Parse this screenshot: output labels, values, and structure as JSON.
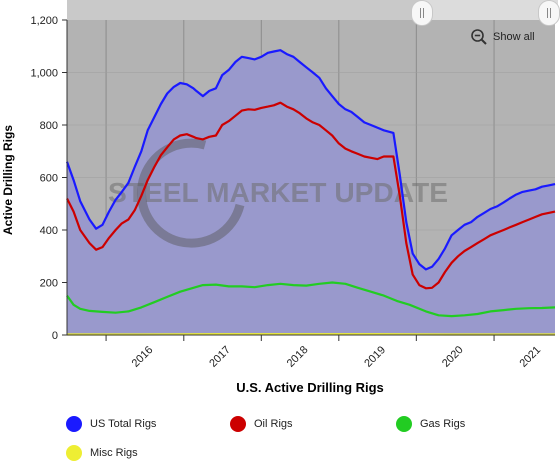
{
  "chart_data": {
    "type": "area",
    "title": "U.S. Active Drilling Rigs",
    "xlabel": "U.S. Active Drilling Rigs",
    "ylabel": "Active Drilling Rigs",
    "ylim": [
      0,
      1200
    ],
    "yticks": [
      "0",
      "200",
      "400",
      "600",
      "800",
      "1,000",
      "1,200"
    ],
    "xtick_labels": [
      "2016",
      "2017",
      "2018",
      "2019",
      "2020",
      "2021"
    ],
    "xlim": [
      "2015-07-01",
      "2021-10-15"
    ],
    "grid": true,
    "legend_position": "bottom",
    "watermark": "STEEL MARKET UPDATE",
    "colors": {
      "plot_bg": "#b3b3b3",
      "area": "#9999cc",
      "us_total": "#1a1aff",
      "oil": "#cc0000",
      "gas": "#22cc22",
      "misc": "#eeee33"
    },
    "series": [
      {
        "name": "US Total Rigs",
        "color": "#1a1aff",
        "points": [
          [
            "2015-07-01",
            660
          ],
          [
            "2015-08-01",
            590
          ],
          [
            "2015-09-01",
            510
          ],
          [
            "2015-10-15",
            440
          ],
          [
            "2015-11-15",
            405
          ],
          [
            "2015-12-15",
            420
          ],
          [
            "2016-01-15",
            470
          ],
          [
            "2016-02-15",
            515
          ],
          [
            "2016-03-15",
            545
          ],
          [
            "2016-04-15",
            580
          ],
          [
            "2016-05-15",
            640
          ],
          [
            "2016-06-15",
            700
          ],
          [
            "2016-07-15",
            780
          ],
          [
            "2016-08-15",
            830
          ],
          [
            "2016-09-15",
            880
          ],
          [
            "2016-10-15",
            920
          ],
          [
            "2016-11-15",
            945
          ],
          [
            "2016-12-15",
            960
          ],
          [
            "2017-01-15",
            955
          ],
          [
            "2017-02-15",
            940
          ],
          [
            "2017-03-01",
            930
          ],
          [
            "2017-04-01",
            910
          ],
          [
            "2017-05-01",
            930
          ],
          [
            "2017-06-01",
            940
          ],
          [
            "2017-07-01",
            990
          ],
          [
            "2017-08-01",
            1010
          ],
          [
            "2017-09-01",
            1040
          ],
          [
            "2017-10-01",
            1060
          ],
          [
            "2017-11-01",
            1055
          ],
          [
            "2017-12-01",
            1050
          ],
          [
            "2018-01-01",
            1060
          ],
          [
            "2018-02-01",
            1075
          ],
          [
            "2018-03-01",
            1080
          ],
          [
            "2018-04-01",
            1085
          ],
          [
            "2018-05-01",
            1070
          ],
          [
            "2018-06-01",
            1060
          ],
          [
            "2018-07-01",
            1040
          ],
          [
            "2018-08-01",
            1020
          ],
          [
            "2018-09-01",
            1000
          ],
          [
            "2018-10-01",
            980
          ],
          [
            "2018-11-01",
            940
          ],
          [
            "2018-12-01",
            910
          ],
          [
            "2019-01-01",
            880
          ],
          [
            "2019-02-01",
            860
          ],
          [
            "2019-03-01",
            850
          ],
          [
            "2019-04-01",
            830
          ],
          [
            "2019-05-01",
            810
          ],
          [
            "2019-06-01",
            800
          ],
          [
            "2019-07-01",
            790
          ],
          [
            "2019-08-01",
            780
          ],
          [
            "2019-09-15",
            770
          ],
          [
            "2019-10-15",
            610
          ],
          [
            "2019-11-15",
            430
          ],
          [
            "2019-12-15",
            310
          ],
          [
            "2020-01-15",
            270
          ],
          [
            "2020-02-15",
            250
          ],
          [
            "2020-03-15",
            260
          ],
          [
            "2020-04-15",
            290
          ],
          [
            "2020-05-15",
            330
          ],
          [
            "2020-06-15",
            380
          ],
          [
            "2020-07-15",
            400
          ],
          [
            "2020-08-15",
            420
          ],
          [
            "2020-09-15",
            430
          ],
          [
            "2020-10-15",
            450
          ],
          [
            "2020-11-15",
            465
          ],
          [
            "2020-12-15",
            480
          ],
          [
            "2021-01-15",
            490
          ],
          [
            "2021-02-15",
            505
          ],
          [
            "2021-03-15",
            520
          ],
          [
            "2021-04-15",
            535
          ],
          [
            "2021-05-15",
            545
          ],
          [
            "2021-06-15",
            550
          ],
          [
            "2021-07-15",
            555
          ],
          [
            "2021-08-15",
            565
          ],
          [
            "2021-09-15",
            570
          ],
          [
            "2021-10-15",
            575
          ]
        ]
      },
      {
        "name": "Oil Rigs",
        "color": "#cc0000",
        "points": [
          [
            "2015-07-01",
            520
          ],
          [
            "2015-08-01",
            470
          ],
          [
            "2015-09-01",
            400
          ],
          [
            "2015-10-15",
            350
          ],
          [
            "2015-11-15",
            325
          ],
          [
            "2015-12-15",
            335
          ],
          [
            "2016-01-15",
            370
          ],
          [
            "2016-02-15",
            400
          ],
          [
            "2016-03-15",
            425
          ],
          [
            "2016-04-15",
            440
          ],
          [
            "2016-05-15",
            475
          ],
          [
            "2016-06-15",
            530
          ],
          [
            "2016-07-15",
            590
          ],
          [
            "2016-08-15",
            640
          ],
          [
            "2016-09-15",
            685
          ],
          [
            "2016-10-15",
            715
          ],
          [
            "2016-11-15",
            745
          ],
          [
            "2016-12-15",
            760
          ],
          [
            "2017-01-15",
            765
          ],
          [
            "2017-02-15",
            755
          ],
          [
            "2017-03-01",
            750
          ],
          [
            "2017-04-01",
            745
          ],
          [
            "2017-05-01",
            755
          ],
          [
            "2017-06-01",
            760
          ],
          [
            "2017-07-01",
            800
          ],
          [
            "2017-08-01",
            815
          ],
          [
            "2017-09-01",
            835
          ],
          [
            "2017-10-01",
            855
          ],
          [
            "2017-11-01",
            860
          ],
          [
            "2017-12-01",
            858
          ],
          [
            "2018-01-01",
            865
          ],
          [
            "2018-02-01",
            870
          ],
          [
            "2018-03-01",
            875
          ],
          [
            "2018-04-01",
            885
          ],
          [
            "2018-05-01",
            870
          ],
          [
            "2018-06-01",
            860
          ],
          [
            "2018-07-01",
            845
          ],
          [
            "2018-08-01",
            825
          ],
          [
            "2018-09-01",
            810
          ],
          [
            "2018-10-01",
            800
          ],
          [
            "2018-11-01",
            780
          ],
          [
            "2018-12-01",
            760
          ],
          [
            "2019-01-01",
            730
          ],
          [
            "2019-02-01",
            710
          ],
          [
            "2019-03-01",
            700
          ],
          [
            "2019-04-01",
            690
          ],
          [
            "2019-05-01",
            680
          ],
          [
            "2019-06-01",
            675
          ],
          [
            "2019-07-01",
            670
          ],
          [
            "2019-08-01",
            680
          ],
          [
            "2019-09-15",
            680
          ],
          [
            "2019-10-15",
            530
          ],
          [
            "2019-11-15",
            350
          ],
          [
            "2019-12-15",
            230
          ],
          [
            "2020-01-15",
            190
          ],
          [
            "2020-02-15",
            178
          ],
          [
            "2020-03-15",
            180
          ],
          [
            "2020-04-15",
            200
          ],
          [
            "2020-05-15",
            240
          ],
          [
            "2020-06-15",
            275
          ],
          [
            "2020-07-15",
            300
          ],
          [
            "2020-08-15",
            320
          ],
          [
            "2020-09-15",
            335
          ],
          [
            "2020-10-15",
            350
          ],
          [
            "2020-11-15",
            365
          ],
          [
            "2020-12-15",
            380
          ],
          [
            "2021-01-15",
            390
          ],
          [
            "2021-02-15",
            400
          ],
          [
            "2021-03-15",
            410
          ],
          [
            "2021-04-15",
            420
          ],
          [
            "2021-05-15",
            430
          ],
          [
            "2021-06-15",
            440
          ],
          [
            "2021-07-15",
            450
          ],
          [
            "2021-08-15",
            460
          ],
          [
            "2021-09-15",
            465
          ],
          [
            "2021-10-15",
            470
          ]
        ]
      },
      {
        "name": "Gas Rigs",
        "color": "#22cc22",
        "points": [
          [
            "2015-07-01",
            150
          ],
          [
            "2015-08-01",
            115
          ],
          [
            "2015-09-01",
            100
          ],
          [
            "2015-10-15",
            92
          ],
          [
            "2015-12-15",
            88
          ],
          [
            "2016-02-15",
            85
          ],
          [
            "2016-04-15",
            90
          ],
          [
            "2016-06-15",
            105
          ],
          [
            "2016-08-15",
            125
          ],
          [
            "2016-10-15",
            145
          ],
          [
            "2016-12-15",
            165
          ],
          [
            "2017-02-15",
            180
          ],
          [
            "2017-04-01",
            190
          ],
          [
            "2017-06-01",
            192
          ],
          [
            "2017-08-01",
            185
          ],
          [
            "2017-10-01",
            185
          ],
          [
            "2017-12-01",
            182
          ],
          [
            "2018-02-01",
            190
          ],
          [
            "2018-04-01",
            195
          ],
          [
            "2018-06-01",
            190
          ],
          [
            "2018-08-01",
            188
          ],
          [
            "2018-10-01",
            195
          ],
          [
            "2018-12-01",
            200
          ],
          [
            "2019-02-01",
            195
          ],
          [
            "2019-04-01",
            180
          ],
          [
            "2019-06-01",
            165
          ],
          [
            "2019-08-01",
            150
          ],
          [
            "2019-10-01",
            130
          ],
          [
            "2019-12-01",
            115
          ],
          [
            "2020-02-15",
            90
          ],
          [
            "2020-04-15",
            75
          ],
          [
            "2020-06-15",
            72
          ],
          [
            "2020-08-15",
            75
          ],
          [
            "2020-10-15",
            80
          ],
          [
            "2020-12-15",
            90
          ],
          [
            "2021-02-15",
            95
          ],
          [
            "2021-04-15",
            100
          ],
          [
            "2021-06-15",
            102
          ],
          [
            "2021-08-15",
            103
          ],
          [
            "2021-10-15",
            105
          ]
        ]
      },
      {
        "name": "Misc Rigs",
        "color": "#eeee33",
        "points": [
          [
            "2015-07-01",
            2
          ],
          [
            "2016-06-01",
            2
          ],
          [
            "2017-06-01",
            3
          ],
          [
            "2018-06-01",
            3
          ],
          [
            "2019-06-01",
            3
          ],
          [
            "2020-06-01",
            2
          ],
          [
            "2021-10-15",
            2
          ]
        ]
      }
    ]
  },
  "ui": {
    "show_all_label": "Show all"
  }
}
